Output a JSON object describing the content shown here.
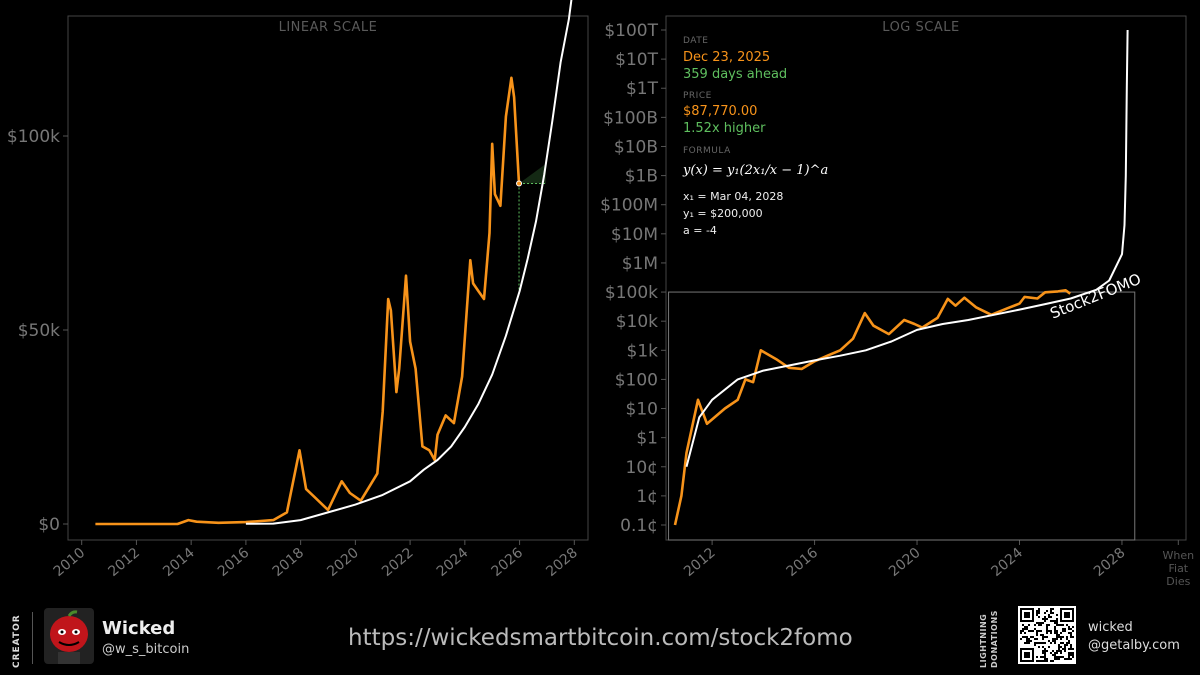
{
  "chart_data": [
    {
      "type": "line",
      "title": "LINEAR SCALE",
      "xlabel": "",
      "ylabel": "",
      "xlim": [
        2009.5,
        2028.5
      ],
      "ylim": [
        0,
        125000
      ],
      "x_ticks": [
        "2010",
        "2012",
        "2014",
        "2016",
        "2018",
        "2020",
        "2022",
        "2024",
        "2026",
        "2028"
      ],
      "y_ticks": [
        "$0",
        "$50k",
        "$100k"
      ],
      "y_tick_values": [
        0,
        50000,
        100000
      ],
      "grid": false,
      "series": [
        {
          "color": "#f7931a",
          "x": [
            2010.5,
            2011.5,
            2012.5,
            2013.5,
            2013.9,
            2014.2,
            2015,
            2016,
            2017,
            2017.5,
            2017.96,
            2018.2,
            2018.5,
            2019.0,
            2019.5,
            2019.8,
            2020.2,
            2020.5,
            2020.8,
            2021.0,
            2021.2,
            2021.3,
            2021.5,
            2021.6,
            2021.85,
            2022.0,
            2022.2,
            2022.45,
            2022.7,
            2022.9,
            2023.0,
            2023.3,
            2023.6,
            2023.9,
            2024.2,
            2024.3,
            2024.5,
            2024.7,
            2024.9,
            2025.0,
            2025.1,
            2025.3,
            2025.5,
            2025.7,
            2025.8,
            2025.98
          ],
          "y": [
            0,
            0,
            0,
            0,
            1000,
            600,
            300,
            500,
            1000,
            3000,
            19000,
            9000,
            7000,
            3600,
            11000,
            8000,
            6000,
            9500,
            13000,
            29000,
            58000,
            55000,
            34000,
            40000,
            64000,
            47000,
            40000,
            20000,
            19000,
            16500,
            23000,
            28000,
            26000,
            38000,
            68000,
            62000,
            60000,
            58000,
            75000,
            98000,
            85000,
            82000,
            105000,
            115000,
            110000,
            87770
          ]
        },
        {
          "color": "#ffffff",
          "x": [
            2016.0,
            2017.0,
            2018.0,
            2019.0,
            2020.0,
            2021.0,
            2022.0,
            2022.5,
            2023.0,
            2023.5,
            2024.0,
            2024.5,
            2025.0,
            2025.5,
            2026.0,
            2026.3,
            2026.6,
            2026.9,
            2027.2,
            2027.5,
            2027.8,
            2027.95
          ],
          "y": [
            50,
            100,
            1000,
            3000,
            5000,
            7500,
            11000,
            14000,
            16500,
            20000,
            25000,
            31000,
            38500,
            48500,
            60000,
            68500,
            78000,
            90000,
            104000,
            119000,
            130000,
            138000
          ]
        }
      ],
      "annotation": {
        "x": 2025.98,
        "y": 87770,
        "x_end": 2026.96
      }
    },
    {
      "type": "line",
      "title": "LOG SCALE",
      "xlabel": "",
      "ylabel": "",
      "y_scale": "log",
      "y_ticks": [
        "0.1¢",
        "1¢",
        "10¢",
        "$1",
        "$10",
        "$100",
        "$1k",
        "$10k",
        "$100k",
        "$1M",
        "$10M",
        "$100M",
        "$1B",
        "$10B",
        "$100B",
        "$1T",
        "$10T",
        "$100T"
      ],
      "y_tick_values": [
        0.001,
        0.01,
        0.1,
        1,
        10,
        100,
        1000,
        10000,
        100000,
        1000000,
        10000000,
        100000000,
        1000000000,
        10000000000,
        100000000000,
        1000000000000,
        10000000000000,
        100000000000000
      ],
      "x_ticks": [
        "2012",
        "2016",
        "2020",
        "2024",
        "2028"
      ],
      "x_tick_values": [
        2012,
        2016,
        2020,
        2024,
        2028
      ],
      "x_end_label": [
        "When",
        "Fiat",
        "Dies"
      ],
      "grid": false,
      "series": [
        {
          "color": "#f7931a",
          "x": [
            2010.55,
            2010.8,
            2011.0,
            2011.45,
            2011.8,
            2012.5,
            2013.0,
            2013.3,
            2013.6,
            2013.9,
            2014.5,
            2015.0,
            2015.5,
            2016.0,
            2016.5,
            2017.0,
            2017.5,
            2017.96,
            2018.3,
            2018.9,
            2019.5,
            2019.9,
            2020.2,
            2020.8,
            2021.2,
            2021.5,
            2021.85,
            2022.3,
            2022.9,
            2023.5,
            2024.0,
            2024.2,
            2024.7,
            2025.0,
            2025.5,
            2025.8,
            2025.98
          ],
          "y": [
            0.001,
            0.01,
            0.3,
            20,
            3,
            10,
            20,
            100,
            80,
            1000,
            500,
            250,
            230,
            420,
            650,
            1000,
            2500,
            19000,
            7000,
            3600,
            11000,
            8000,
            6000,
            13000,
            58000,
            34000,
            64000,
            30000,
            16500,
            27000,
            40000,
            68000,
            60000,
            98000,
            105000,
            115000,
            87770
          ]
        },
        {
          "color": "#ffffff",
          "x": [
            2011.0,
            2011.5,
            2012.0,
            2013.0,
            2014.0,
            2015.0,
            2016.0,
            2017.0,
            2018.0,
            2019.0,
            2020.0,
            2021.0,
            2022.0,
            2023.0,
            2024.0,
            2025.0,
            2026.0,
            2027.0,
            2027.5,
            2028.0,
            2028.1,
            2028.15,
            2028.19,
            2028.22
          ],
          "y": [
            0.1,
            5,
            20,
            100,
            200,
            300,
            450,
            650,
            1000,
            2000,
            5000,
            8000,
            11000,
            16500,
            25000,
            38500,
            60000,
            120000,
            250000,
            2000000,
            20000000,
            1000000000,
            1000000000000,
            100000000000000
          ]
        }
      ],
      "curve_label": "Stock2FOMO"
    }
  ],
  "info": {
    "date_label": "DATE",
    "date_value": "Dec 23, 2025",
    "date_ahead": "359 days ahead",
    "price_label": "PRICE",
    "price_value": "$87,770.00",
    "price_multiple": "1.52x higher",
    "formula_label": "FORMULA",
    "formula_text": "y(x) = y₁(2x₁/x − 1)^a",
    "param_x1": "x₁ = Mar 04, 2028",
    "param_y1": "y₁ = $200,000",
    "param_a": "a = -4"
  },
  "footer": {
    "creator_label": "CREATOR",
    "creator_name": "Wicked",
    "creator_handle": "@w_s_bitcoin",
    "url": "https://wickedsmartbitcoin.com/stock2fomo",
    "lightning_label": "LIGHTNING DONATIONS",
    "lightning_name": "wicked",
    "lightning_address": "@getalby.com"
  },
  "colors": {
    "bitcoin_orange": "#f7931a",
    "model_curve": "#ffffff",
    "positive_green": "#5fbf5f"
  }
}
